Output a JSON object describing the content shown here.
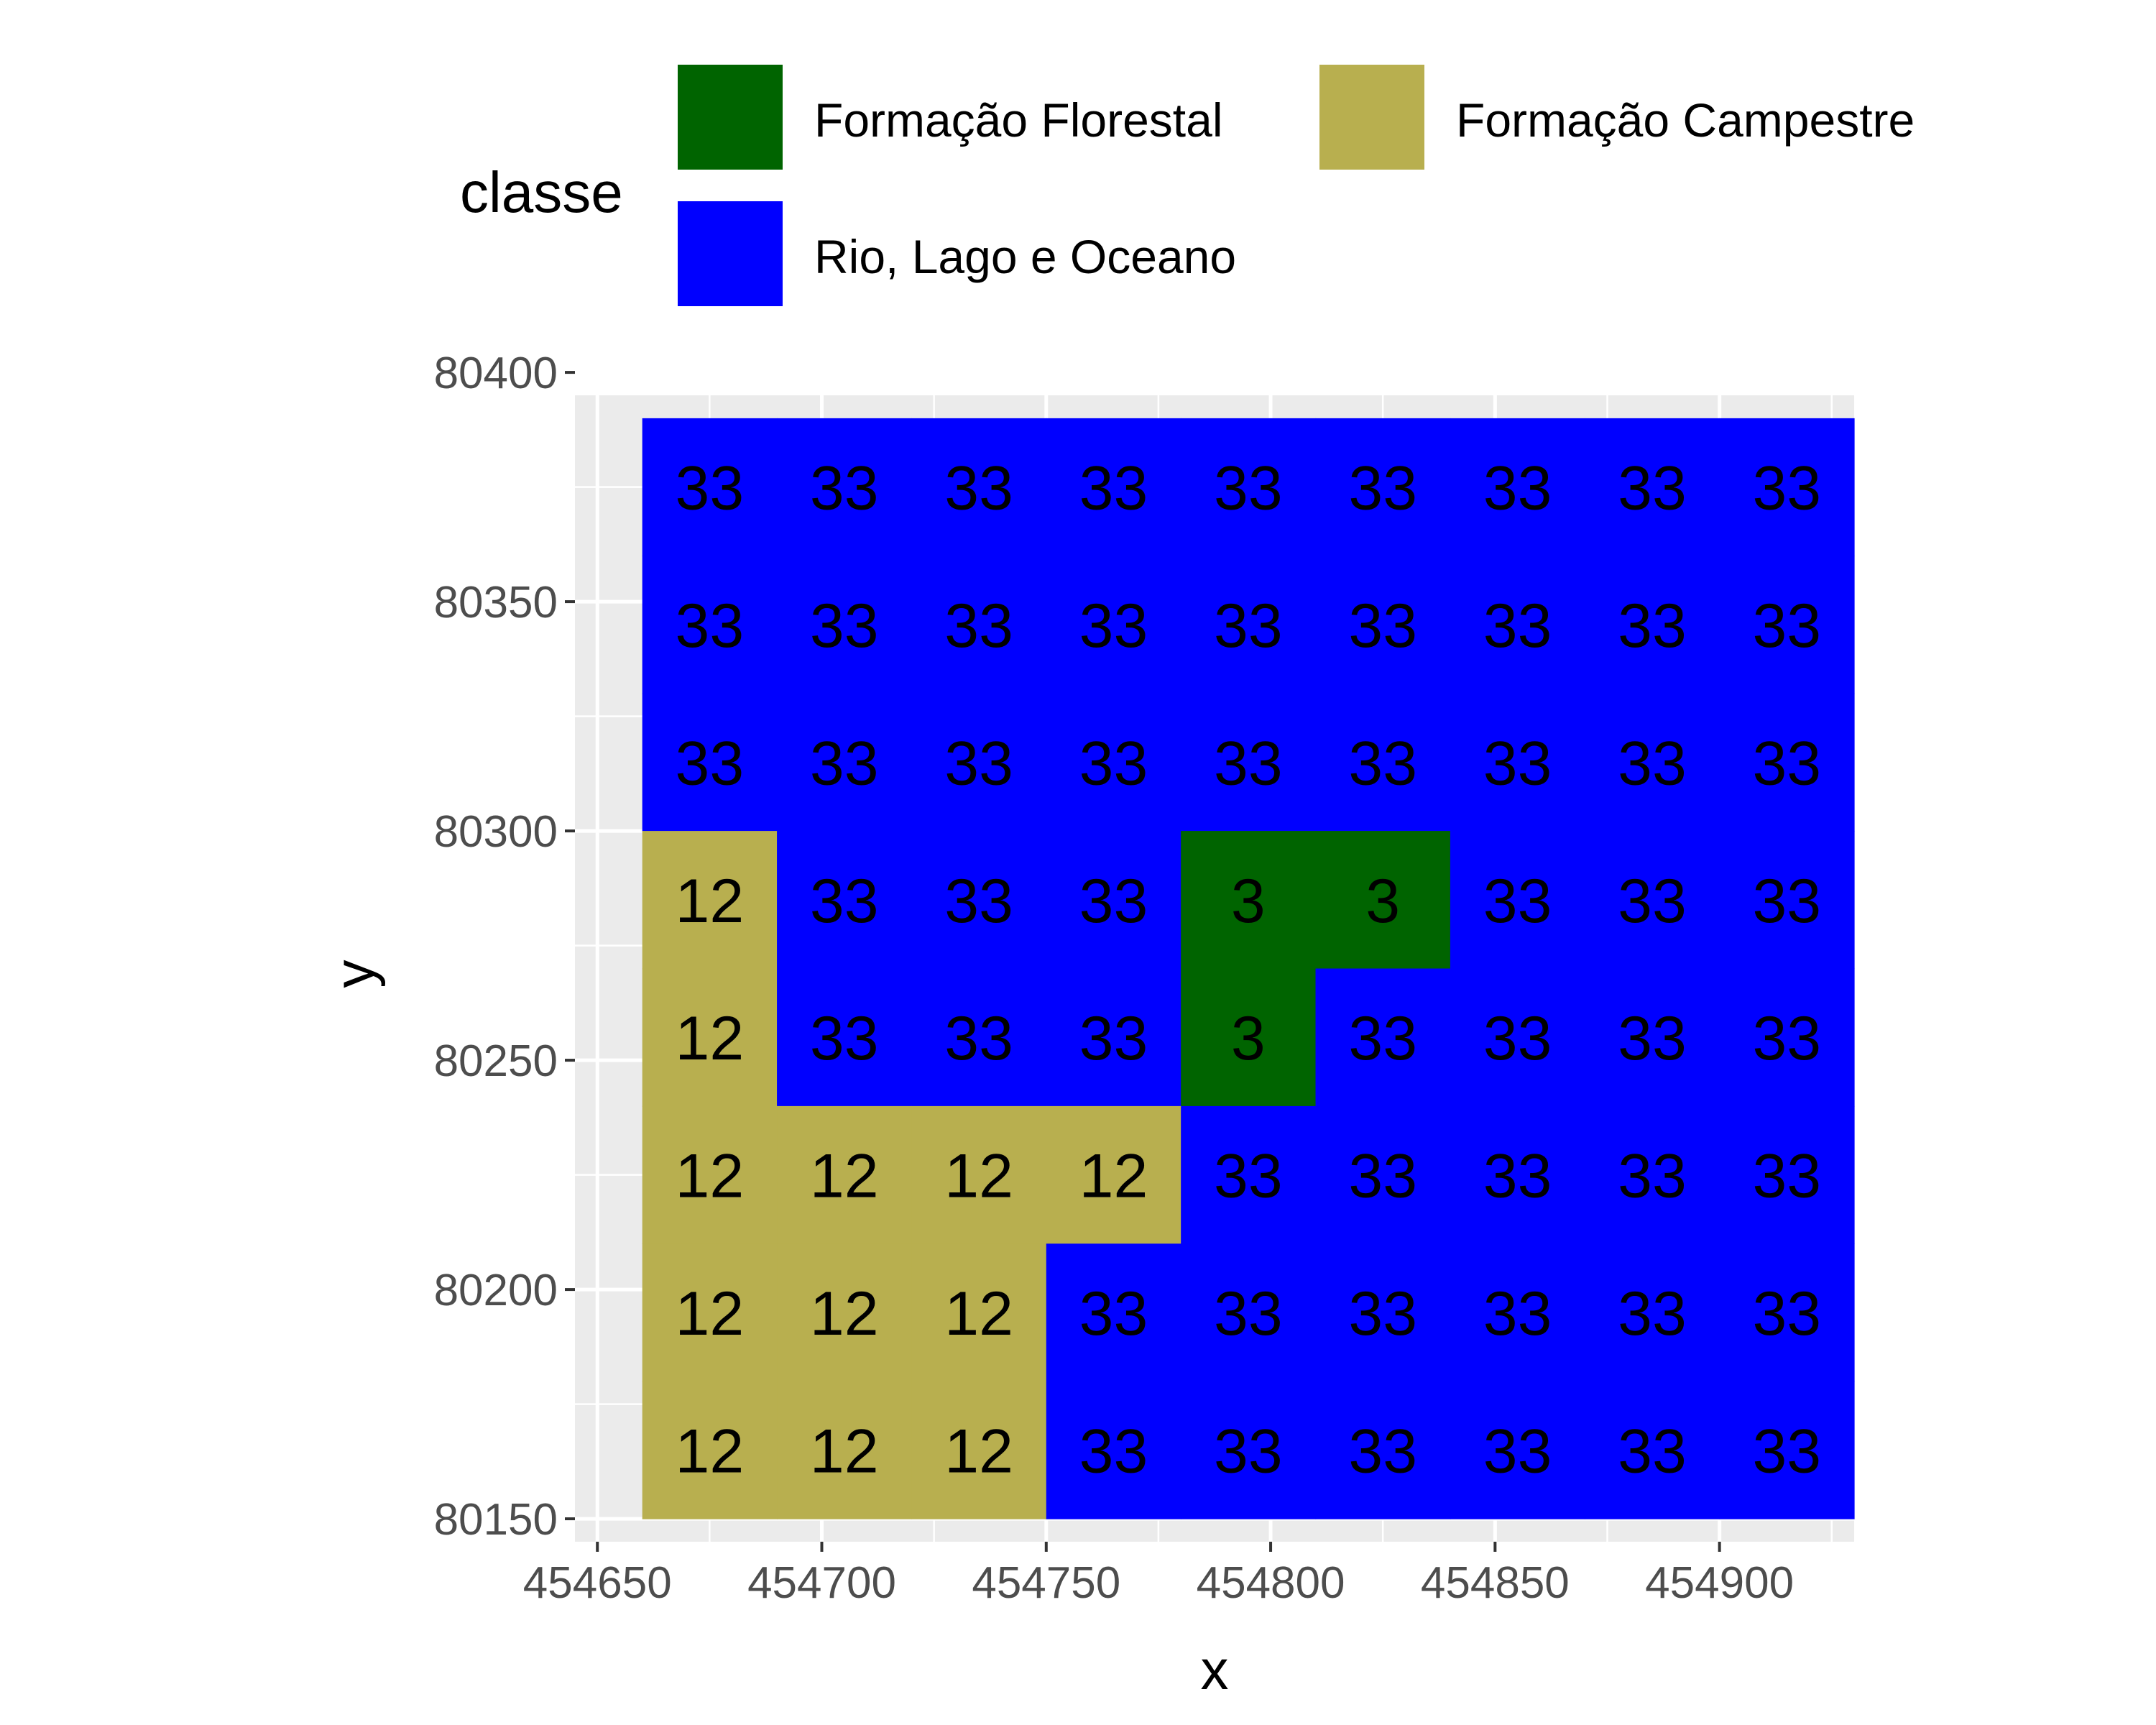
{
  "chart_data": {
    "type": "heatmap",
    "xlabel": "x",
    "ylabel": "y",
    "xlim": [
      454645,
      454930
    ],
    "ylim": [
      80145,
      80395
    ],
    "x_ticks": [
      454650,
      454700,
      454750,
      454800,
      454850,
      454900
    ],
    "y_ticks": [
      80150,
      80200,
      80250,
      80300,
      80350,
      80400
    ],
    "x_tick_labels": [
      "454650",
      "454700",
      "454750",
      "454800",
      "454850",
      "454900"
    ],
    "y_tick_labels": [
      "80150",
      "80200",
      "80250",
      "80300",
      "80350",
      "80400"
    ],
    "grid": true,
    "cell_size": 30,
    "x_centers": [
      454675,
      454705,
      454735,
      454765,
      454795,
      454825,
      454855,
      454885,
      454915
    ],
    "y_centers": [
      80375,
      80345,
      80315,
      80285,
      80255,
      80225,
      80195,
      80165
    ],
    "values": [
      [
        33,
        33,
        33,
        33,
        33,
        33,
        33,
        33,
        33
      ],
      [
        33,
        33,
        33,
        33,
        33,
        33,
        33,
        33,
        33
      ],
      [
        33,
        33,
        33,
        33,
        33,
        33,
        33,
        33,
        33
      ],
      [
        12,
        33,
        33,
        33,
        3,
        3,
        33,
        33,
        33
      ],
      [
        12,
        33,
        33,
        33,
        3,
        33,
        33,
        33,
        33
      ],
      [
        12,
        12,
        12,
        12,
        33,
        33,
        33,
        33,
        33
      ],
      [
        12,
        12,
        12,
        33,
        33,
        33,
        33,
        33,
        33
      ],
      [
        12,
        12,
        12,
        33,
        33,
        33,
        33,
        33,
        33
      ]
    ],
    "legend": {
      "title": "classe",
      "position": "top",
      "entries": [
        {
          "value": 3,
          "label": "Formação Florestal",
          "color": "#006400"
        },
        {
          "value": 12,
          "label": "Formação Campestre",
          "color": "#B8AF4F"
        },
        {
          "value": 33,
          "label": "Rio, Lago e Oceano",
          "color": "#0000FF"
        }
      ]
    },
    "colors": {
      "panel_background": "#EBEBEB",
      "grid_line": "#FFFFFF",
      "tick_text": "#4D4D4D"
    }
  }
}
